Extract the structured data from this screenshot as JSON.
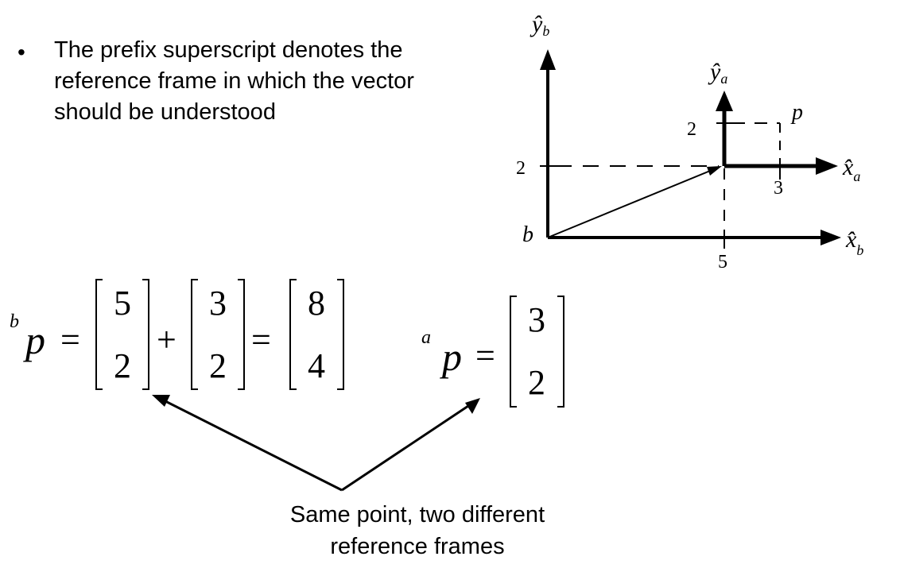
{
  "bullet": {
    "marker": "•",
    "lines": [
      "The prefix superscript denotes the",
      "reference frame in which the vector",
      "should be understood"
    ]
  },
  "diagram": {
    "frame_b": {
      "origin_label": "b",
      "x_axis": {
        "hat": "x̂",
        "sub": "b"
      },
      "y_axis": {
        "hat": "ŷ",
        "sub": "b"
      },
      "tick_x": "5",
      "tick_y": "2"
    },
    "frame_a": {
      "x_axis": {
        "hat": "x̂",
        "sub": "a"
      },
      "y_axis": {
        "hat": "ŷ",
        "sub": "a"
      },
      "tick_x": "3",
      "tick_y": "2"
    },
    "point_label": "p"
  },
  "equation_b": {
    "superscript": "b",
    "var": "p",
    "eq1": "=",
    "vec1": [
      "5",
      "2"
    ],
    "plus": "+",
    "vec2": [
      "3",
      "2"
    ],
    "eq2": "=",
    "vec3": [
      "8",
      "4"
    ]
  },
  "equation_a": {
    "superscript": "a",
    "var": "p",
    "eq": "=",
    "vec": [
      "3",
      "2"
    ]
  },
  "caption": {
    "lines": [
      "Same point, two different",
      "reference frames"
    ]
  }
}
